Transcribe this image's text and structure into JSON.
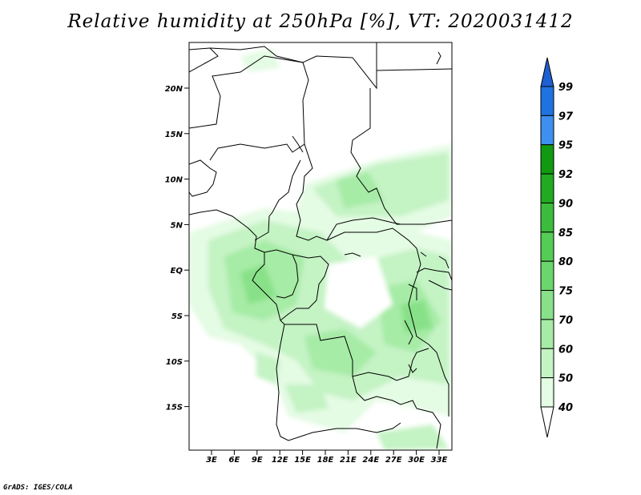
{
  "title": "Relative humidity at 250hPa [%], VT: 2020031412",
  "footer": "GrADS: IGES/COLA",
  "map": {
    "lat_ticks": [
      "20N",
      "15N",
      "10N",
      "5N",
      "EQ",
      "5S",
      "10S",
      "15S"
    ],
    "lon_ticks": [
      "3E",
      "6E",
      "9E",
      "12E",
      "15E",
      "18E",
      "21E",
      "24E",
      "27E",
      "30E",
      "33E"
    ],
    "variable": "Relative humidity",
    "level": "250hPa",
    "unit": "%",
    "valid_time": "2020031412"
  },
  "colorbar": {
    "labels": [
      "99",
      "97",
      "95",
      "92",
      "90",
      "85",
      "80",
      "75",
      "70",
      "60",
      "50",
      "40"
    ],
    "colors": [
      "#1e5fd2",
      "#1f73e0",
      "#3d8ff0",
      "#119a11",
      "#22aa22",
      "#3cbc3c",
      "#55cc55",
      "#6bd66b",
      "#88e188",
      "#a6eba6",
      "#c4f3c4",
      "#e4fbe4"
    ]
  }
}
